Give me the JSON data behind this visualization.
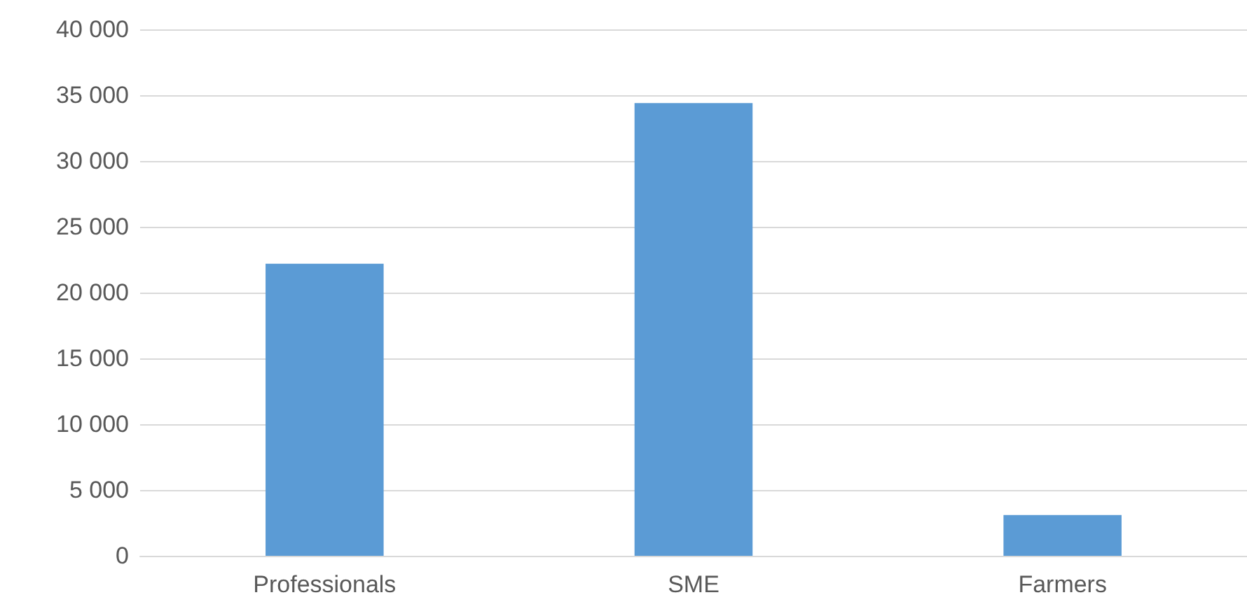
{
  "chart_data": {
    "type": "bar",
    "categories": [
      "Professionals",
      "SME",
      "Farmers"
    ],
    "series": [
      {
        "color": "#5b9bd5",
        "values": [
          22200,
          34400,
          3100
        ]
      }
    ],
    "ylim": [
      0,
      40000
    ],
    "yticks": [
      {
        "value": 0,
        "label": "0"
      },
      {
        "value": 5000,
        "label": "5 000"
      },
      {
        "value": 10000,
        "label": "10 000"
      },
      {
        "value": 15000,
        "label": "15 000"
      },
      {
        "value": 20000,
        "label": "20 000"
      },
      {
        "value": 25000,
        "label": "25 000"
      },
      {
        "value": 30000,
        "label": "30 000"
      },
      {
        "value": 35000,
        "label": "35 000"
      },
      {
        "value": 40000,
        "label": "40 000"
      }
    ],
    "grid": "y"
  }
}
